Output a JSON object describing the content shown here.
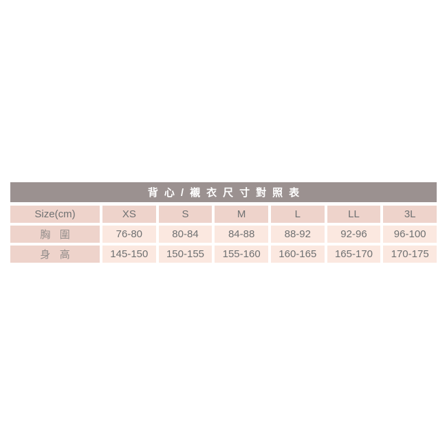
{
  "title": "背心/襯衣尺寸對照表",
  "colors": {
    "title_bar_bg": "#9B9190",
    "title_text": "#FFFFFF",
    "header_cell_bg": "#EED3CB",
    "data_cell_bg": "#FBE8E0",
    "header_text": "#6E7071",
    "label_text": "#918C8A",
    "data_text": "#6E7071",
    "page_bg": "#FFFFFF"
  },
  "chart_data": {
    "type": "table",
    "title": "背心/襯衣尺寸對照表",
    "columns": [
      "Size(cm)",
      "XS",
      "S",
      "M",
      "L",
      "LL",
      "3L"
    ],
    "rows": [
      {
        "label": "胸圍",
        "values": [
          "76-80",
          "80-84",
          "84-88",
          "88-92",
          "92-96",
          "96-100"
        ]
      },
      {
        "label": "身高",
        "values": [
          "145-150",
          "150-155",
          "155-160",
          "160-165",
          "165-170",
          "170-175"
        ]
      }
    ]
  }
}
